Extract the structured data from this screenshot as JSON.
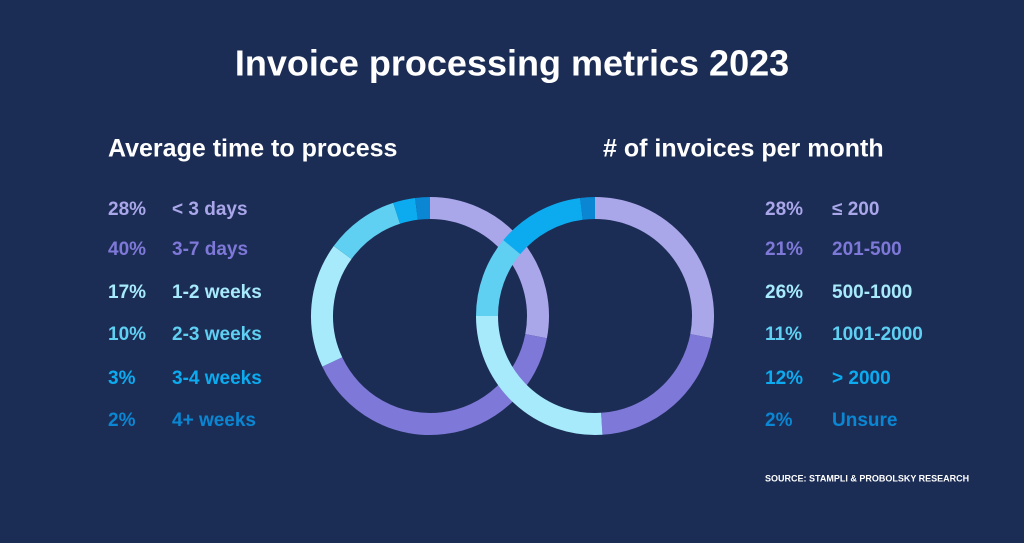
{
  "title": "Invoice processing metrics 2023",
  "source": "SOURCE:  STAMPLI & PROBOLSKY RESEARCH",
  "chart_data": [
    {
      "type": "pie",
      "title": "Average time to process",
      "categories": [
        "< 3 days",
        "3-7 days",
        "1-2 weeks",
        "2-3 weeks",
        "3-4 weeks",
        "4+ weeks"
      ],
      "values": [
        28,
        40,
        17,
        10,
        3,
        2
      ],
      "value_labels": [
        "28%",
        "40%",
        "17%",
        "10%",
        "3%",
        "2%"
      ],
      "colors": [
        "#a9a6ea",
        "#7e78d8",
        "#a6eafb",
        "#5fcff2",
        "#0cabf0",
        "#0a86d2"
      ]
    },
    {
      "type": "pie",
      "title": "# of invoices per month",
      "categories": [
        "≤ 200",
        "201-500",
        "500-1000",
        "1001-2000",
        "> 2000",
        "Unsure"
      ],
      "values": [
        28,
        21,
        26,
        11,
        12,
        2
      ],
      "value_labels": [
        "28%",
        "21%",
        "26%",
        "11%",
        "12%",
        "2%"
      ],
      "colors": [
        "#a9a6ea",
        "#7e78d8",
        "#a6eafb",
        "#5fcff2",
        "#0cabf0",
        "#0a86d2"
      ]
    }
  ]
}
